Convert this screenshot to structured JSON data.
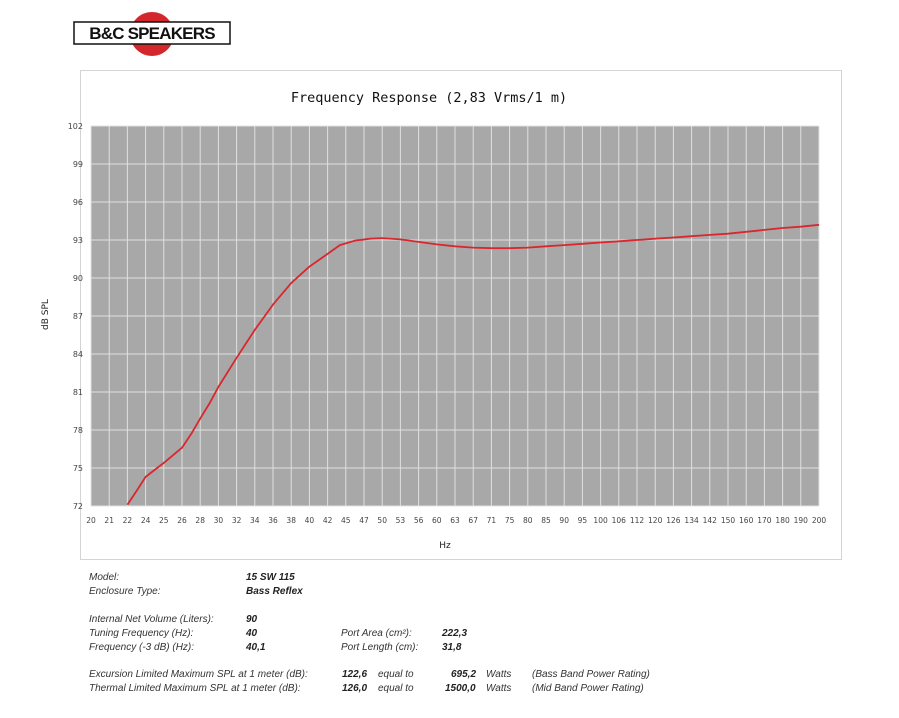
{
  "brand": {
    "name": "B&C SPEAKERS",
    "accent": "#d3272b"
  },
  "chart_data": {
    "type": "line",
    "title": "Frequency Response (2,83 Vrms/1 m)",
    "xlabel": "Hz",
    "ylabel": "dB SPL",
    "x_scale": "log",
    "xlim": [
      20,
      200
    ],
    "ylim": [
      72,
      102
    ],
    "grid": true,
    "x_ticks": [
      20,
      21,
      22,
      24,
      25,
      26,
      28,
      30,
      32,
      34,
      36,
      38,
      40,
      42,
      45,
      47,
      50,
      53,
      56,
      60,
      63,
      67,
      71,
      75,
      80,
      85,
      90,
      95,
      100,
      106,
      112,
      120,
      126,
      134,
      142,
      150,
      160,
      170,
      180,
      190,
      200
    ],
    "y_ticks": [
      72,
      75,
      78,
      81,
      84,
      87,
      90,
      93,
      96,
      99,
      102
    ],
    "series": [
      {
        "color": "#d9272e",
        "points": [
          [
            22,
            72.1
          ],
          [
            23,
            73.2
          ],
          [
            24,
            74.3
          ],
          [
            25,
            75.4
          ],
          [
            26,
            76.6
          ],
          [
            27,
            77.7
          ],
          [
            28,
            78.9
          ],
          [
            29,
            80.1
          ],
          [
            30,
            81.4
          ],
          [
            32,
            83.7
          ],
          [
            34,
            85.9
          ],
          [
            36,
            87.9
          ],
          [
            38,
            89.6
          ],
          [
            40,
            90.9
          ],
          [
            42,
            91.9
          ],
          [
            44,
            92.6
          ],
          [
            46,
            92.95
          ],
          [
            48,
            93.1
          ],
          [
            50,
            93.15
          ],
          [
            53,
            93.05
          ],
          [
            56,
            92.85
          ],
          [
            60,
            92.65
          ],
          [
            63,
            92.5
          ],
          [
            67,
            92.4
          ],
          [
            71,
            92.35
          ],
          [
            75,
            92.35
          ],
          [
            80,
            92.4
          ],
          [
            85,
            92.5
          ],
          [
            90,
            92.6
          ],
          [
            95,
            92.7
          ],
          [
            100,
            92.8
          ],
          [
            106,
            92.9
          ],
          [
            112,
            93.0
          ],
          [
            120,
            93.1
          ],
          [
            126,
            93.2
          ],
          [
            134,
            93.3
          ],
          [
            142,
            93.4
          ],
          [
            150,
            93.5
          ],
          [
            160,
            93.65
          ],
          [
            170,
            93.8
          ],
          [
            180,
            93.95
          ],
          [
            190,
            94.05
          ],
          [
            200,
            94.2
          ]
        ]
      }
    ]
  },
  "specs": {
    "model_label": "Model:",
    "model_value": "15 SW 115",
    "enclosure_label": "Enclosure Type:",
    "enclosure_value": "Bass Reflex",
    "volume_label": "Internal  Net Volume (Liters):",
    "volume_value": "90",
    "tuning_label": "Tuning Frequency (Hz):",
    "tuning_value": "40",
    "freq3db_label": "Frequency (-3 dB) (Hz):",
    "freq3db_value": "40,1",
    "port_area_label": "Port Area (cm²):",
    "port_area_value": "222,3",
    "port_length_label": "Port Length (cm):",
    "port_length_value": "31,8",
    "exc_label": "Excursion Limited Maximum SPL at 1 meter (dB):",
    "exc_value": "122,6",
    "exc_equal": "equal to",
    "exc_watts": "695,2",
    "exc_unit": "Watts",
    "exc_note": "(Bass Band Power Rating)",
    "th_label": "Thermal Limited Maximum SPL at 1 meter (dB):",
    "th_value": "126,0",
    "th_equal": "equal to",
    "th_watts": "1500,0",
    "th_unit": "Watts",
    "th_note": "(Mid Band Power Rating)"
  }
}
